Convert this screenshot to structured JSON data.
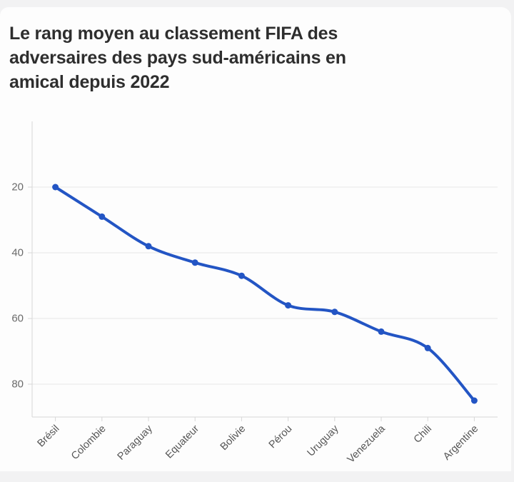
{
  "header": {
    "title": "Le rang moyen au classement FIFA des adversaires des pays sud-américains en amical depuis 2022",
    "title_lines": [
      "Le rang moyen au classement FIFA des",
      "adversaires des pays sud-américains en",
      "amical depuis 2022"
    ]
  },
  "chart_data": {
    "type": "line",
    "title": "Le rang moyen au classement FIFA des adversaires des pays sud-américains en amical depuis 2022",
    "categories": [
      "Brésil",
      "Colombie",
      "Paraguay",
      "Equateur",
      "Bolivie",
      "Pérou",
      "Uruguay",
      "Venezuela",
      "Chili",
      "Argentine"
    ],
    "values": [
      20,
      29,
      38,
      43,
      47,
      56,
      58,
      64,
      69,
      85
    ],
    "xlabel": "",
    "ylabel": "",
    "y_ticks": [
      20,
      40,
      60,
      80
    ],
    "ylim": [
      0,
      90
    ],
    "y_axis_inverted": true,
    "grid": true,
    "legend": false,
    "line_color": "#2355c4",
    "marker": "circle",
    "colors": {
      "background": "#f2f2f3",
      "card": "#fdfdfd",
      "title_text": "#2e2e2e",
      "gridline": "#e8e8e8",
      "axis": "#d7d7d7",
      "y_tick_label": "#6b6b6b",
      "x_tick_label": "#555555"
    }
  }
}
